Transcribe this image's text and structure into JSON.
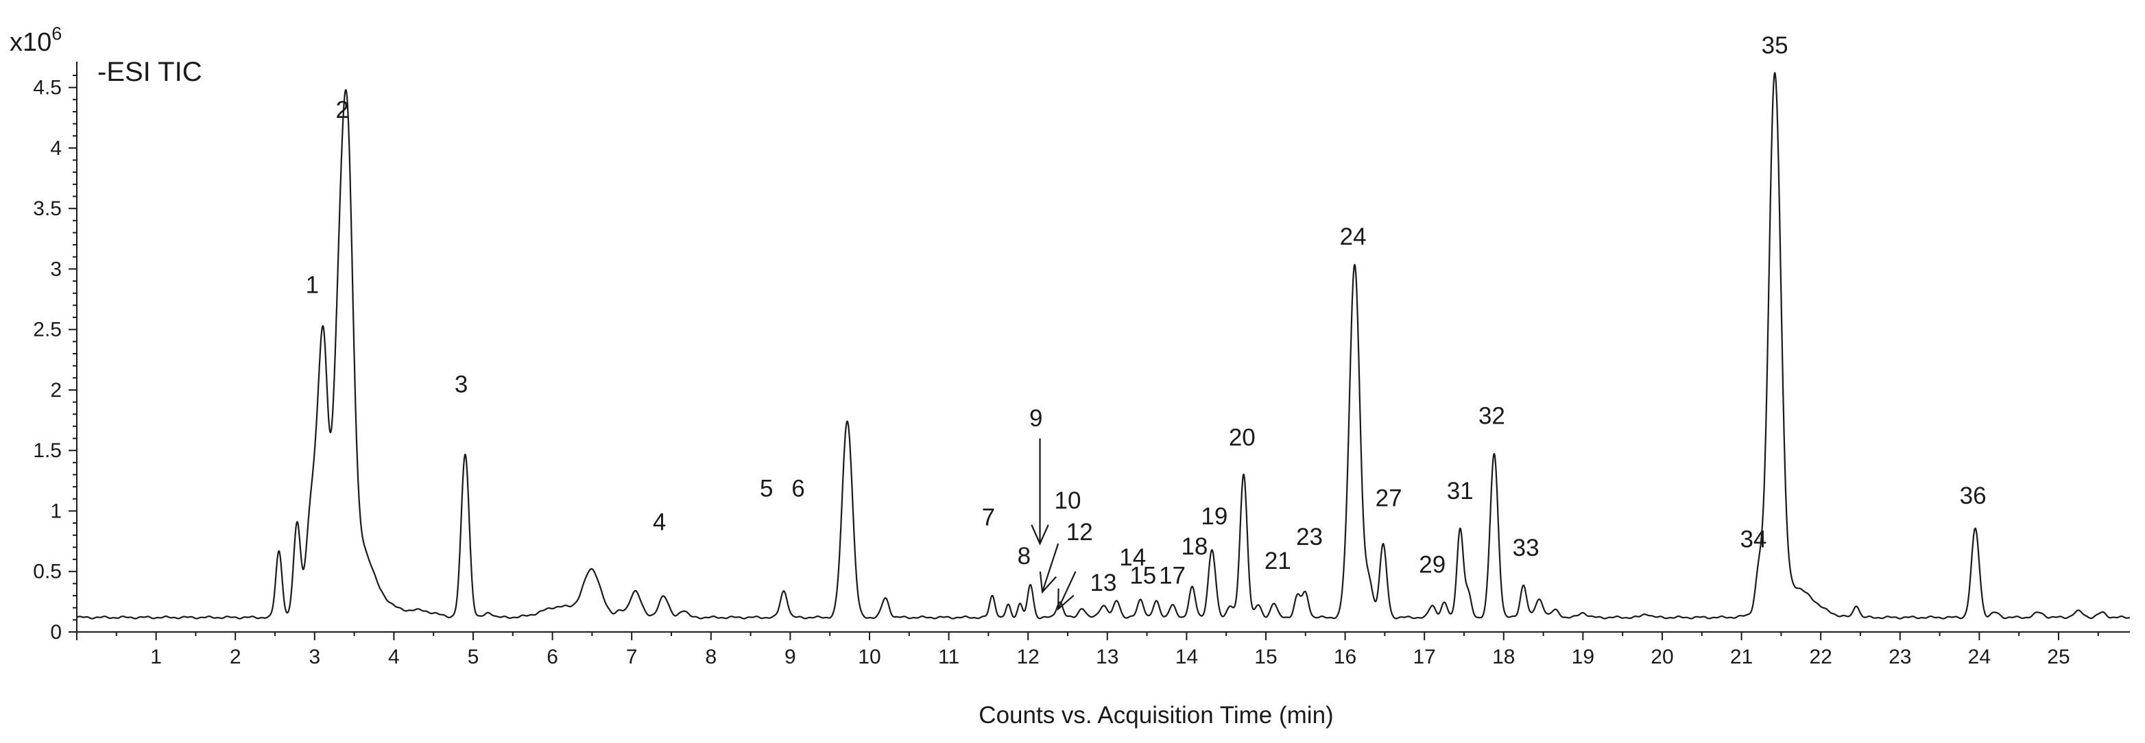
{
  "chart_data": {
    "type": "line",
    "title": "-ESI TIC",
    "xlabel": "Counts vs. Acquisition Time (min)",
    "ylabel": "",
    "y_multiplier_label": {
      "base": "x10",
      "exponent": "6"
    },
    "xlim": [
      0,
      25.9
    ],
    "ylim": [
      0,
      4.6
    ],
    "x_ticks": [
      1,
      2,
      3,
      4,
      5,
      6,
      7,
      8,
      9,
      10,
      11,
      12,
      13,
      14,
      15,
      16,
      17,
      18,
      19,
      20,
      21,
      22,
      23,
      24,
      25
    ],
    "x_tick_labels": [
      "1",
      "2",
      "3",
      "4",
      "5",
      "6",
      "7",
      "8",
      "9",
      "10",
      "11",
      "12",
      "13",
      "14",
      "15",
      "16",
      "17",
      "18",
      "19",
      "20",
      "21",
      "22",
      "23",
      "24",
      "25"
    ],
    "y_ticks": [
      0,
      0.5,
      1,
      1.5,
      2,
      2.5,
      3,
      3.5,
      4,
      4.5
    ],
    "y_tick_labels": [
      "0",
      "0.5",
      "1",
      "1.5",
      "2",
      "2.5",
      "3",
      "3.5",
      "4",
      "4.5"
    ],
    "grid": false,
    "legend": "none",
    "line_color": "#1a1a1a",
    "baseline": 0.12,
    "series": [
      {
        "peaks": [
          [
            2.55,
            0.55,
            0.04
          ],
          [
            2.78,
            0.78,
            0.045
          ],
          [
            2.93,
            0.55,
            0.05
          ],
          [
            3.05,
            1.4,
            0.07
          ],
          [
            3.12,
            1.3,
            0.05
          ],
          [
            3.32,
            2.4,
            0.09
          ],
          [
            3.42,
            2.6,
            0.07
          ],
          [
            3.58,
            0.55,
            0.14
          ],
          [
            3.85,
            0.12,
            0.15
          ],
          [
            4.3,
            0.06,
            0.2
          ],
          [
            4.9,
            1.35,
            0.05
          ],
          [
            5.2,
            0.04,
            0.05
          ],
          [
            6.1,
            0.09,
            0.22
          ],
          [
            6.5,
            0.38,
            0.11
          ],
          [
            6.85,
            0.06,
            0.05
          ],
          [
            7.05,
            0.22,
            0.07
          ],
          [
            7.4,
            0.18,
            0.06
          ],
          [
            7.65,
            0.06,
            0.05
          ],
          [
            8.92,
            0.22,
            0.045
          ],
          [
            9.72,
            1.63,
            0.065
          ],
          [
            10.2,
            0.16,
            0.045
          ],
          [
            11.55,
            0.18,
            0.035
          ],
          [
            11.75,
            0.1,
            0.03
          ],
          [
            11.9,
            0.12,
            0.03
          ],
          [
            12.03,
            0.27,
            0.035
          ],
          [
            12.4,
            0.13,
            0.04
          ],
          [
            12.68,
            0.08,
            0.04
          ],
          [
            12.95,
            0.1,
            0.05
          ],
          [
            13.12,
            0.14,
            0.04
          ],
          [
            13.42,
            0.15,
            0.04
          ],
          [
            13.62,
            0.13,
            0.04
          ],
          [
            13.82,
            0.1,
            0.04
          ],
          [
            14.07,
            0.25,
            0.04
          ],
          [
            14.32,
            0.56,
            0.045
          ],
          [
            14.55,
            0.1,
            0.04
          ],
          [
            14.72,
            1.18,
            0.045
          ],
          [
            14.9,
            0.1,
            0.04
          ],
          [
            15.1,
            0.12,
            0.04
          ],
          [
            15.4,
            0.18,
            0.04
          ],
          [
            15.5,
            0.2,
            0.04
          ],
          [
            16.0,
            0.1,
            0.04
          ],
          [
            16.12,
            2.92,
            0.065
          ],
          [
            16.3,
            0.3,
            0.05
          ],
          [
            16.48,
            0.6,
            0.045
          ],
          [
            17.1,
            0.1,
            0.04
          ],
          [
            17.25,
            0.12,
            0.04
          ],
          [
            17.45,
            0.73,
            0.04
          ],
          [
            17.55,
            0.2,
            0.04
          ],
          [
            17.88,
            1.35,
            0.05
          ],
          [
            18.25,
            0.27,
            0.04
          ],
          [
            18.45,
            0.15,
            0.05
          ],
          [
            18.65,
            0.06,
            0.05
          ],
          [
            19.0,
            0.04,
            0.05
          ],
          [
            19.8,
            0.03,
            0.05
          ],
          [
            21.22,
            0.31,
            0.045
          ],
          [
            21.42,
            4.34,
            0.075
          ],
          [
            21.65,
            0.25,
            0.25
          ],
          [
            22.45,
            0.1,
            0.035
          ],
          [
            23.95,
            0.73,
            0.05
          ],
          [
            24.2,
            0.04,
            0.05
          ],
          [
            24.75,
            0.04,
            0.06
          ],
          [
            25.25,
            0.05,
            0.06
          ],
          [
            25.55,
            0.04,
            0.05
          ]
        ]
      }
    ],
    "annotations": [
      {
        "label": "1",
        "x": 2.97,
        "y": 2.8
      },
      {
        "label": "2",
        "x": 3.35,
        "y": 4.25
      },
      {
        "label": "3",
        "x": 4.85,
        "y": 1.98
      },
      {
        "label": "4",
        "x": 7.35,
        "y": 0.84
      },
      {
        "label": "5",
        "x": 8.7,
        "y": 1.12
      },
      {
        "label": "6",
        "x": 9.1,
        "y": 1.12
      },
      {
        "label": "7",
        "x": 11.5,
        "y": 0.88
      },
      {
        "label": "8",
        "x": 11.95,
        "y": 0.56
      },
      {
        "label": "9",
        "x": 12.1,
        "y": 1.7
      },
      {
        "label": "10",
        "x": 12.5,
        "y": 1.02
      },
      {
        "label": "12",
        "x": 12.65,
        "y": 0.76
      },
      {
        "label": "13",
        "x": 12.95,
        "y": 0.34
      },
      {
        "label": "14",
        "x": 13.32,
        "y": 0.55
      },
      {
        "label": "15",
        "x": 13.45,
        "y": 0.4
      },
      {
        "label": "17",
        "x": 13.82,
        "y": 0.4
      },
      {
        "label": "18",
        "x": 14.1,
        "y": 0.64
      },
      {
        "label": "19",
        "x": 14.35,
        "y": 0.89
      },
      {
        "label": "20",
        "x": 14.7,
        "y": 1.54
      },
      {
        "label": "21",
        "x": 15.15,
        "y": 0.52
      },
      {
        "label": "23",
        "x": 15.55,
        "y": 0.72
      },
      {
        "label": "24",
        "x": 16.1,
        "y": 3.2
      },
      {
        "label": "27",
        "x": 16.55,
        "y": 1.04
      },
      {
        "label": "29",
        "x": 17.1,
        "y": 0.49
      },
      {
        "label": "31",
        "x": 17.45,
        "y": 1.1
      },
      {
        "label": "32",
        "x": 17.85,
        "y": 1.72
      },
      {
        "label": "33",
        "x": 18.28,
        "y": 0.63
      },
      {
        "label": "34",
        "x": 21.15,
        "y": 0.7
      },
      {
        "label": "35",
        "x": 21.42,
        "y": 4.78
      },
      {
        "label": "36",
        "x": 23.92,
        "y": 1.06
      }
    ],
    "arrows": [
      {
        "from": [
          12.15,
          1.6
        ],
        "to": [
          12.15,
          0.73
        ]
      },
      {
        "from": [
          12.38,
          0.73
        ],
        "to": [
          12.18,
          0.33
        ]
      },
      {
        "from": [
          12.6,
          0.5
        ],
        "to": [
          12.38,
          0.19
        ]
      }
    ]
  }
}
